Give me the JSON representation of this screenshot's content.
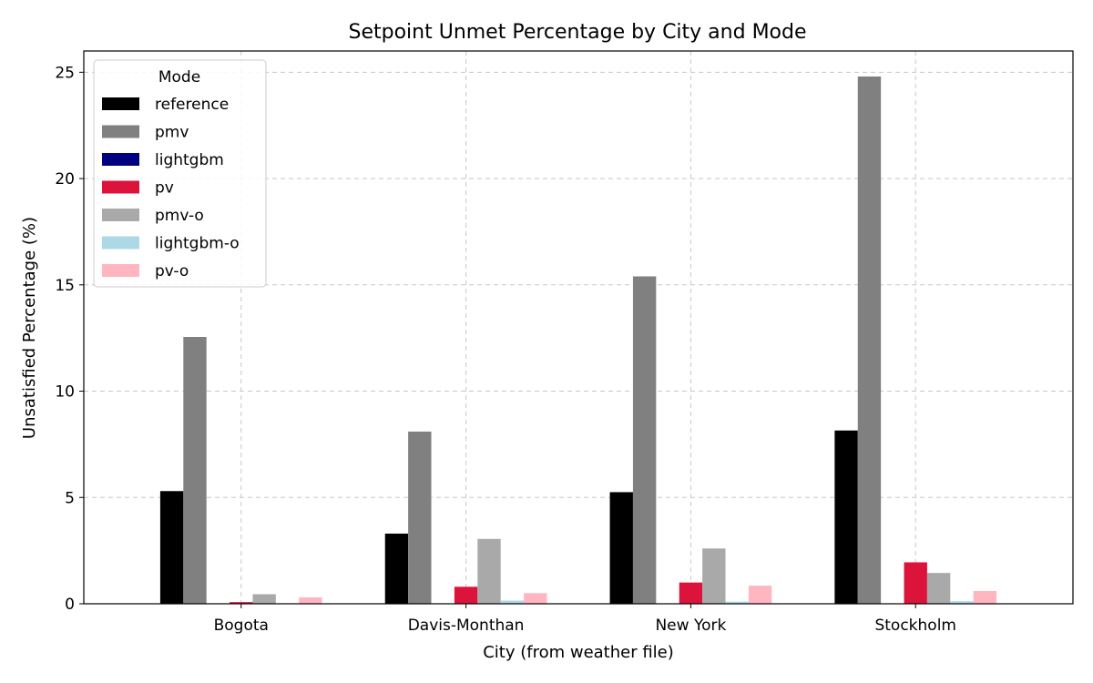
{
  "chart_data": {
    "type": "bar",
    "title": "Setpoint Unmet Percentage by City and Mode",
    "xlabel": "City (from weather file)",
    "ylabel": "Unsatisfied Percentage (%)",
    "ylim": [
      0,
      26
    ],
    "yticks": [
      0,
      5,
      10,
      15,
      20,
      25
    ],
    "grid": true,
    "legend": {
      "title": "Mode",
      "placement": "top-left"
    },
    "categories": [
      "Bogota",
      "Davis-Monthan",
      "New York",
      "Stockholm"
    ],
    "series": [
      {
        "name": "reference",
        "color": "#000000",
        "values": [
          5.3,
          3.3,
          5.25,
          8.15
        ]
      },
      {
        "name": "pmv",
        "color": "#808080",
        "values": [
          12.55,
          8.1,
          15.4,
          24.8
        ]
      },
      {
        "name": "lightgbm",
        "color": "#000080",
        "values": [
          0,
          0,
          0,
          0
        ]
      },
      {
        "name": "pv",
        "color": "#dc143c",
        "values": [
          0.08,
          0.8,
          1.0,
          1.95
        ]
      },
      {
        "name": "pmv-o",
        "color": "#a9a9a9",
        "values": [
          0.45,
          3.05,
          2.6,
          1.45
        ]
      },
      {
        "name": "lightgbm-o",
        "color": "#add8e6",
        "values": [
          0,
          0.15,
          0.1,
          0.12
        ]
      },
      {
        "name": "pv-o",
        "color": "#ffb6c1",
        "values": [
          0.3,
          0.5,
          0.85,
          0.6
        ]
      }
    ]
  }
}
